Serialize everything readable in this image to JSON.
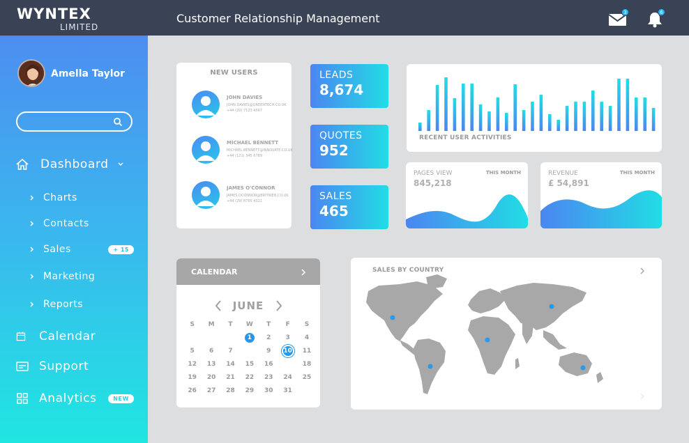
{
  "header": {
    "brand": "WYNTEX",
    "brand_sub": "LIMITED",
    "title": "Customer Relationship Management",
    "mail_count": "3",
    "notif_count": "6"
  },
  "sidebar": {
    "user_name": "Amella Taylor",
    "search_placeholder": "",
    "items": [
      {
        "label": "Dashboard",
        "icon": "home-icon"
      },
      {
        "label": "Charts"
      },
      {
        "label": "Contacts"
      },
      {
        "label": "Sales",
        "badge": "+ 15"
      },
      {
        "label": "Marketing"
      },
      {
        "label": "Reports"
      },
      {
        "label": "Calendar",
        "icon": "calendar-icon"
      },
      {
        "label": "Support",
        "icon": "support-icon"
      },
      {
        "label": "Analytics",
        "icon": "grid-icon",
        "badge": "NEW"
      }
    ]
  },
  "new_users": {
    "title": "NEW USERS",
    "users": [
      {
        "name": "JOHN DAVIES",
        "email": "JOHN.DAVIES@GREENTECH.CO.UK",
        "phone": "+44 (20) 7123 4567"
      },
      {
        "name": "MICHAEL BENNETT",
        "email": "MICHAEL.BENNETT@INNOVATE.CO.UK",
        "phone": "+44 (121) 345 6789"
      },
      {
        "name": "JAMES O'CONNOR",
        "email": "JAMES.OCONNOR@BRITWEB.CO.UK",
        "phone": "+44 (29) 8765 4321"
      }
    ]
  },
  "stats": [
    {
      "label": "LEADS",
      "value": "8,674"
    },
    {
      "label": "QUOTES",
      "value": "952"
    },
    {
      "label": "SALES",
      "value": "465"
    }
  ],
  "activities": {
    "label": "RECENT USER ACTIVITIES",
    "bars": [
      12,
      30,
      66,
      77,
      47,
      68,
      68,
      38,
      28,
      48,
      26,
      67,
      30,
      42,
      52,
      24,
      16,
      36,
      42,
      42,
      58,
      42,
      36,
      75,
      75,
      48,
      48,
      33
    ]
  },
  "page_views": {
    "label": "PAGES VIEW",
    "value": "845,218",
    "period": "THIS MONTH"
  },
  "revenue": {
    "label": "REVENUE",
    "value": "£ 54,891",
    "period": "THIS MONTH"
  },
  "calendar": {
    "title": "CALENDAR",
    "month": "JUNE",
    "weekdays": [
      "S",
      "M",
      "T",
      "W",
      "T",
      "F",
      "S"
    ],
    "weeks": [
      [
        "",
        "",
        "",
        "1",
        "2",
        "3",
        "4"
      ],
      [
        "5",
        "6",
        "7",
        "",
        "9",
        "10",
        "11"
      ],
      [
        "12",
        "13",
        "14",
        "15",
        "16",
        "",
        "18"
      ],
      [
        "19",
        "20",
        "21",
        "22",
        "23",
        "24",
        "25"
      ],
      [
        "26",
        "27",
        "28",
        "29",
        "30",
        "31",
        ""
      ]
    ],
    "today": "1",
    "selected": "10"
  },
  "sales_country": {
    "label": "SALES BY COUNTRY"
  },
  "colors": {
    "header": "#3a4255",
    "accent": "#2997e9",
    "grad_start": "#4b86f1",
    "grad_end": "#21dde5"
  }
}
